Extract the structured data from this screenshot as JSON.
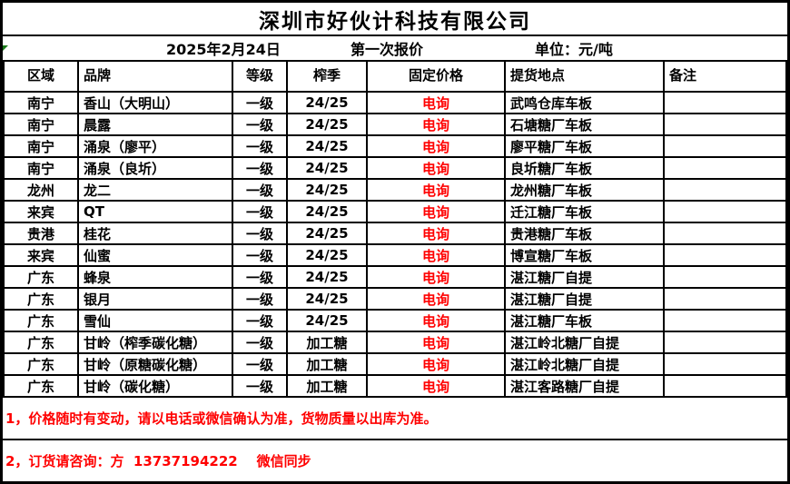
{
  "company": {
    "title": "深圳市好伙计科技有限公司"
  },
  "meta": {
    "date": "2025年2月24日",
    "quote_round": "第一次报价",
    "unit": "单位：元/吨"
  },
  "icons": {
    "corner_marker": "excel-error-marker"
  },
  "table": {
    "headers": {
      "region": "区域",
      "brand": "品牌",
      "grade": "等级",
      "season": "榨季",
      "fixed_price": "固定价格",
      "pickup_location": "提货地点",
      "remark": "备注"
    },
    "rows": [
      {
        "region": "南宁",
        "brand": "香山（大明山）",
        "grade": "一级",
        "season": "24/25",
        "fixed_price": "电询",
        "pickup_location": "武鸣仓库车板",
        "remark": ""
      },
      {
        "region": "南宁",
        "brand": "晨露",
        "grade": "一级",
        "season": "24/25",
        "fixed_price": "电询",
        "pickup_location": "石塘糖厂车板",
        "remark": ""
      },
      {
        "region": "南宁",
        "brand": "涌泉（廖平）",
        "grade": "一级",
        "season": "24/25",
        "fixed_price": "电询",
        "pickup_location": "廖平糖厂车板",
        "remark": ""
      },
      {
        "region": "南宁",
        "brand": "涌泉（良圻）",
        "grade": "一级",
        "season": "24/25",
        "fixed_price": "电询",
        "pickup_location": "良圻糖厂车板",
        "remark": ""
      },
      {
        "region": "龙州",
        "brand": "龙二",
        "grade": "一级",
        "season": "24/25",
        "fixed_price": "电询",
        "pickup_location": "龙州糖厂车板",
        "remark": ""
      },
      {
        "region": "来宾",
        "brand": "QT",
        "grade": "一级",
        "season": "24/25",
        "fixed_price": "电询",
        "pickup_location": "迁江糖厂车板",
        "remark": ""
      },
      {
        "region": "贵港",
        "brand": "桂花",
        "grade": "一级",
        "season": "24/25",
        "fixed_price": "电询",
        "pickup_location": "贵港糖厂车板",
        "remark": ""
      },
      {
        "region": "来宾",
        "brand": "仙蜜",
        "grade": "一级",
        "season": "24/25",
        "fixed_price": "电询",
        "pickup_location": "博宣糖厂车板",
        "remark": ""
      },
      {
        "region": "广东",
        "brand": "蜂泉",
        "grade": "一级",
        "season": "24/25",
        "fixed_price": "电询",
        "pickup_location": "湛江糖厂自提",
        "remark": ""
      },
      {
        "region": "广东",
        "brand": "银月",
        "grade": "一级",
        "season": "24/25",
        "fixed_price": "电询",
        "pickup_location": "湛江糖厂自提",
        "remark": ""
      },
      {
        "region": "广东",
        "brand": "雪仙",
        "grade": "一级",
        "season": "24/25",
        "fixed_price": "电询",
        "pickup_location": "湛江糖厂车板",
        "remark": ""
      },
      {
        "region": "广东",
        "brand": "甘岭（榨季碳化糖）",
        "grade": "一级",
        "season": "加工糖",
        "fixed_price": "电询",
        "pickup_location": "湛江岭北糖厂自提",
        "remark": ""
      },
      {
        "region": "广东",
        "brand": "甘岭（原糖碳化糖）",
        "grade": "一级",
        "season": "加工糖",
        "fixed_price": "电询",
        "pickup_location": "湛江岭北糖厂自提",
        "remark": ""
      },
      {
        "region": "广东",
        "brand": "甘岭（碳化糖）",
        "grade": "一级",
        "season": "加工糖",
        "fixed_price": "电询",
        "pickup_location": "湛江客路糖厂自提",
        "remark": ""
      }
    ]
  },
  "notes": [
    "1，价格随时有变动，请以电话或微信确认为准，货物质量以出库为准。",
    "2，订货请咨询：方  13737194222    微信同步"
  ],
  "colors": {
    "border_black": "#000000",
    "price_red": "#FF0000",
    "note_red": "#FF0000",
    "marker_green": "#1A7A1A"
  }
}
